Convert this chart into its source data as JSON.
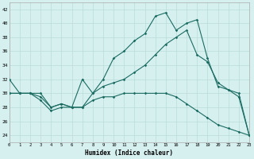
{
  "xlabel": "Humidex (Indice chaleur)",
  "background_color": "#d6f0f0",
  "line_color": "#1a6b60",
  "grid_color": "#b8dcd8",
  "xlim": [
    0,
    23
  ],
  "ylim": [
    23,
    43
  ],
  "yticks": [
    24,
    26,
    28,
    30,
    32,
    34,
    36,
    38,
    40,
    42
  ],
  "xticks": [
    0,
    1,
    2,
    3,
    4,
    5,
    6,
    7,
    8,
    9,
    10,
    11,
    12,
    13,
    14,
    15,
    16,
    17,
    18,
    19,
    20,
    21,
    22,
    23
  ],
  "line1_x": [
    0,
    1,
    2,
    3,
    4,
    5,
    6,
    7,
    8,
    9,
    10,
    11,
    12,
    13,
    14,
    15,
    16,
    17,
    18,
    19,
    20,
    21,
    22,
    23
  ],
  "line1_y": [
    32,
    30,
    30,
    29,
    27.5,
    28,
    28,
    32,
    30,
    32,
    35,
    36,
    37.5,
    38.5,
    41,
    41.5,
    39,
    40,
    40.5,
    35,
    31,
    30.5,
    29.5,
    24
  ],
  "line2_x": [
    0,
    1,
    2,
    3,
    4,
    5,
    6,
    7,
    8,
    9,
    10,
    11,
    12,
    13,
    14,
    15,
    16,
    17,
    18,
    19,
    20,
    21,
    22,
    23
  ],
  "line2_y": [
    30,
    30,
    30,
    30,
    28,
    28.5,
    28,
    28,
    30,
    31,
    31.5,
    32,
    33,
    34,
    35.5,
    37,
    38,
    39,
    35.5,
    34.5,
    31.5,
    30.5,
    30,
    24
  ],
  "line3_x": [
    0,
    1,
    2,
    3,
    4,
    5,
    6,
    7,
    8,
    9,
    10,
    11,
    12,
    13,
    14,
    15,
    16,
    17,
    18,
    19,
    20,
    21,
    22,
    23
  ],
  "line3_y": [
    30,
    30,
    30,
    29.5,
    28,
    28.5,
    28,
    28,
    29,
    29.5,
    29.5,
    30,
    30,
    30,
    30,
    30,
    29.5,
    28.5,
    27.5,
    26.5,
    25.5,
    25,
    24.5,
    24
  ]
}
